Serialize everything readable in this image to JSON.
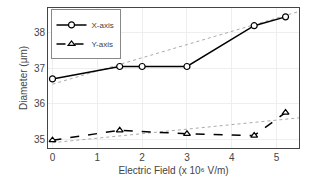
{
  "chart_data": {
    "type": "line",
    "xlabel": "Electric Field (x 10⁶ V/m)",
    "ylabel": "Diameter (μm)",
    "series": [
      {
        "x": [
          0,
          5.5
        ],
        "values": [
          36.55,
          38.6
        ],
        "color": "#aaaaaa",
        "line_style": "dotted"
      },
      {
        "x": [
          0,
          5.5
        ],
        "values": [
          34.9,
          35.6
        ],
        "color": "#aaaaaa",
        "line_style": "dotted"
      },
      {
        "name": "X-axis",
        "x": [
          0,
          1.5,
          2.0,
          3.0,
          4.5,
          5.2
        ],
        "values": [
          36.7,
          37.05,
          37.05,
          37.05,
          38.2,
          38.45
        ],
        "color": "#000000",
        "line_style": "solid",
        "marker": "circle"
      },
      {
        "name": "Y-axis",
        "x": [
          0,
          1.5,
          3.0,
          4.5,
          5.2
        ],
        "values": [
          34.97,
          35.25,
          35.15,
          35.1,
          35.75
        ],
        "color": "#000000",
        "line_style": "dashed",
        "marker": "triangle"
      }
    ],
    "xlim": [
      -0.1,
      5.5
    ],
    "ylim": [
      34.75,
      38.7
    ],
    "xticks": [
      0,
      1,
      2,
      3,
      4,
      5
    ],
    "yticks": [
      35,
      36,
      37,
      38
    ],
    "legend": "upper left"
  }
}
